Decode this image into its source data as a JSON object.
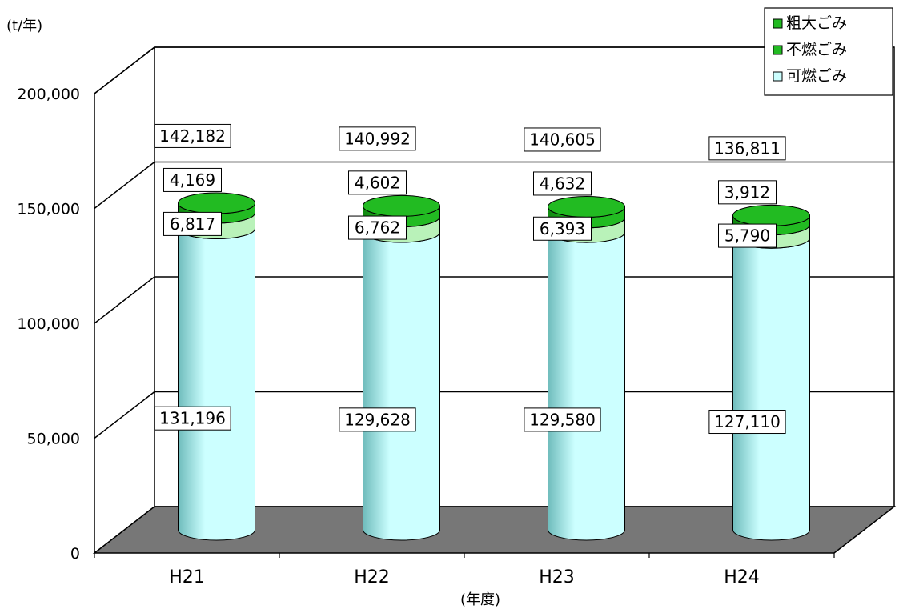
{
  "chart_data": {
    "type": "bar",
    "style": "3d-cylinder-stacked",
    "ylabel": "(t/年)",
    "xlabel": "(年度)",
    "categories": [
      "H21",
      "H22",
      "H23",
      "H24"
    ],
    "ylim": [
      0,
      200000
    ],
    "yticks": [
      "0",
      "50,000",
      "100,000",
      "150,000",
      "200,000"
    ],
    "grid": true,
    "legend_position": "top-right",
    "series": [
      {
        "name": "可燃ごみ",
        "values": [
          131196,
          129628,
          129580,
          127110
        ],
        "labels": [
          "131,196",
          "129,628",
          "129,580",
          "127,110"
        ],
        "color": "#ccffff"
      },
      {
        "name": "不燃ごみ",
        "values": [
          6817,
          6762,
          6393,
          5790
        ],
        "labels": [
          "6,817",
          "6,762",
          "6,393",
          "5,790"
        ],
        "color": "#b9f2b9"
      },
      {
        "name": "粗大ごみ",
        "values": [
          4169,
          4602,
          4632,
          3912
        ],
        "labels": [
          "4,169",
          "4,602",
          "4,632",
          "3,912"
        ],
        "color": "#22bb22"
      }
    ],
    "totals": [
      142182,
      140992,
      140605,
      136811
    ],
    "total_labels": [
      "142,182",
      "140,992",
      "140,605",
      "136,811"
    ],
    "legend": [
      "粗大ごみ",
      "不燃ごみ",
      "可燃ごみ"
    ]
  }
}
